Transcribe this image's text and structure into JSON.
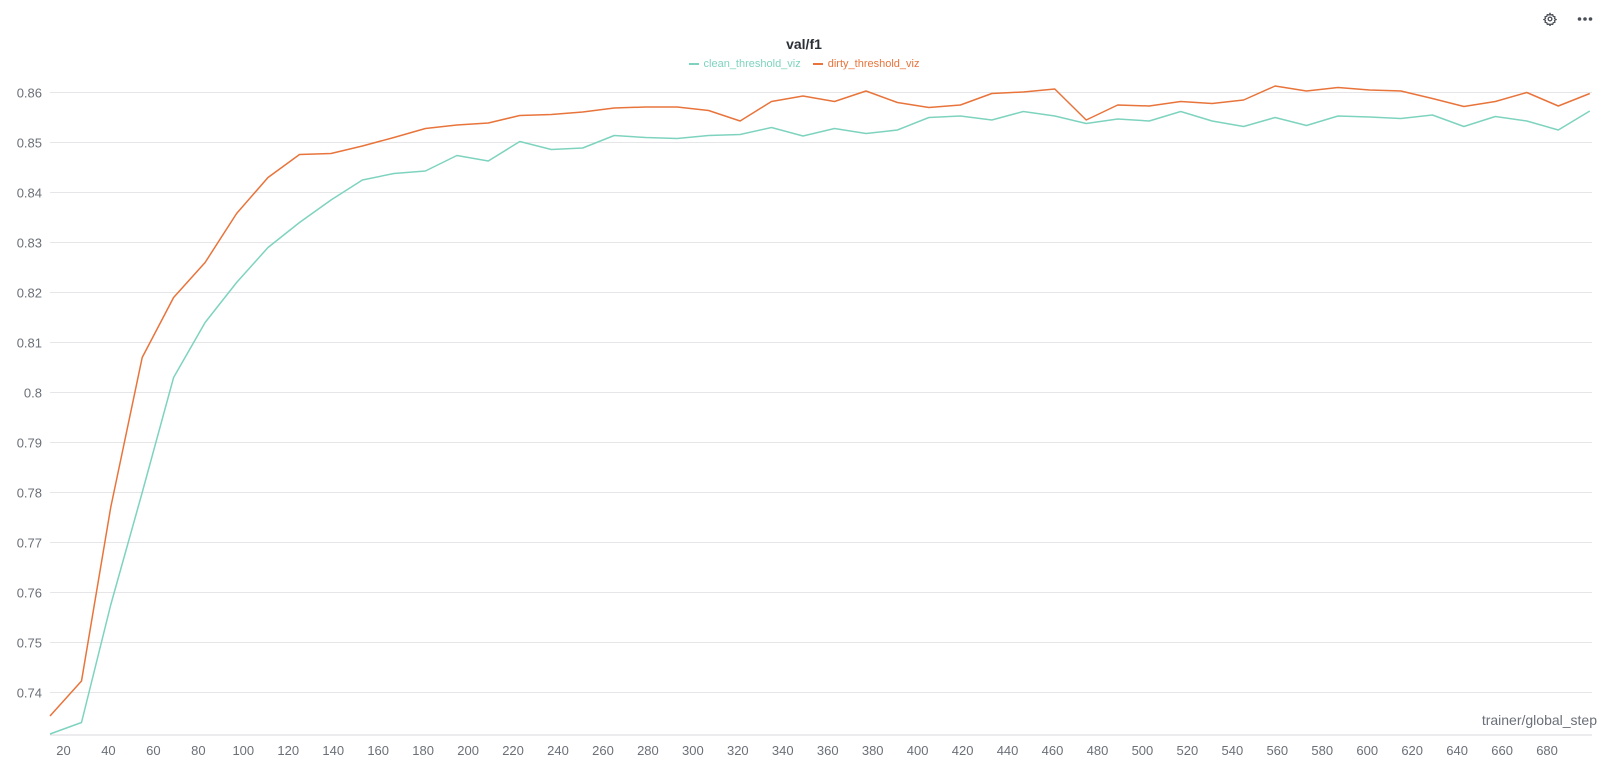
{
  "toolbar": {
    "settings_icon": "gear-icon",
    "more_icon": "ellipsis-icon"
  },
  "chart_data": {
    "type": "line",
    "title": "val/f1",
    "xlabel": "trainer/global_step",
    "ylabel": "",
    "xlim": [
      14,
      700
    ],
    "ylim": [
      0.7315,
      0.8625
    ],
    "xticks": [
      20,
      40,
      60,
      80,
      100,
      120,
      140,
      160,
      180,
      200,
      220,
      240,
      260,
      280,
      300,
      320,
      340,
      360,
      380,
      400,
      420,
      440,
      460,
      480,
      500,
      520,
      540,
      560,
      580,
      600,
      620,
      640,
      660,
      680
    ],
    "yticks": [
      0.74,
      0.75,
      0.76,
      0.77,
      0.78,
      0.79,
      0.8,
      0.81,
      0.82,
      0.83,
      0.84,
      0.85,
      0.86
    ],
    "ytick_labels": [
      "0.74",
      "0.75",
      "0.76",
      "0.77",
      "0.78",
      "0.79",
      "0.8",
      "0.81",
      "0.82",
      "0.83",
      "0.84",
      "0.85",
      "0.86"
    ],
    "grid": "horizontal",
    "legend_position": "top-center",
    "x": [
      14,
      28,
      41,
      55,
      69,
      83,
      97,
      111,
      125,
      139,
      153,
      167,
      181,
      195,
      209,
      223,
      237,
      251,
      265,
      279,
      293,
      307,
      321,
      335,
      349,
      363,
      377,
      391,
      405,
      419,
      433,
      447,
      461,
      475,
      489,
      503,
      517,
      531,
      545,
      559,
      573,
      587,
      601,
      615,
      629,
      643,
      657,
      671,
      685,
      699
    ],
    "series": [
      {
        "name": "clean_threshold_viz",
        "color": "#7ed3bf",
        "values": [
          0.7317,
          0.734,
          0.7575,
          0.78,
          0.803,
          0.814,
          0.822,
          0.829,
          0.834,
          0.8385,
          0.8425,
          0.8438,
          0.8443,
          0.8474,
          0.8463,
          0.8502,
          0.8486,
          0.8489,
          0.8514,
          0.851,
          0.8508,
          0.8514,
          0.8516,
          0.853,
          0.8513,
          0.8528,
          0.8518,
          0.8525,
          0.855,
          0.8553,
          0.8545,
          0.8562,
          0.8553,
          0.8538,
          0.8547,
          0.8543,
          0.8562,
          0.8543,
          0.8532,
          0.855,
          0.8534,
          0.8553,
          0.8551,
          0.8548,
          0.8555,
          0.8532,
          0.8552,
          0.8543,
          0.8525,
          0.8563
        ]
      },
      {
        "name": "dirty_threshold_viz",
        "color": "#e8743b",
        "values": [
          0.7353,
          0.7423,
          0.777,
          0.807,
          0.819,
          0.826,
          0.8358,
          0.843,
          0.8476,
          0.8478,
          0.8493,
          0.851,
          0.8528,
          0.8535,
          0.8539,
          0.8554,
          0.8556,
          0.8561,
          0.8569,
          0.8571,
          0.8571,
          0.8564,
          0.8543,
          0.8582,
          0.8593,
          0.8582,
          0.8603,
          0.858,
          0.857,
          0.8575,
          0.8598,
          0.8601,
          0.8607,
          0.8545,
          0.8575,
          0.8573,
          0.8582,
          0.8578,
          0.8585,
          0.8613,
          0.8603,
          0.861,
          0.8605,
          0.8603,
          0.8588,
          0.8572,
          0.8582,
          0.86,
          0.8573,
          0.8598
        ]
      }
    ]
  }
}
